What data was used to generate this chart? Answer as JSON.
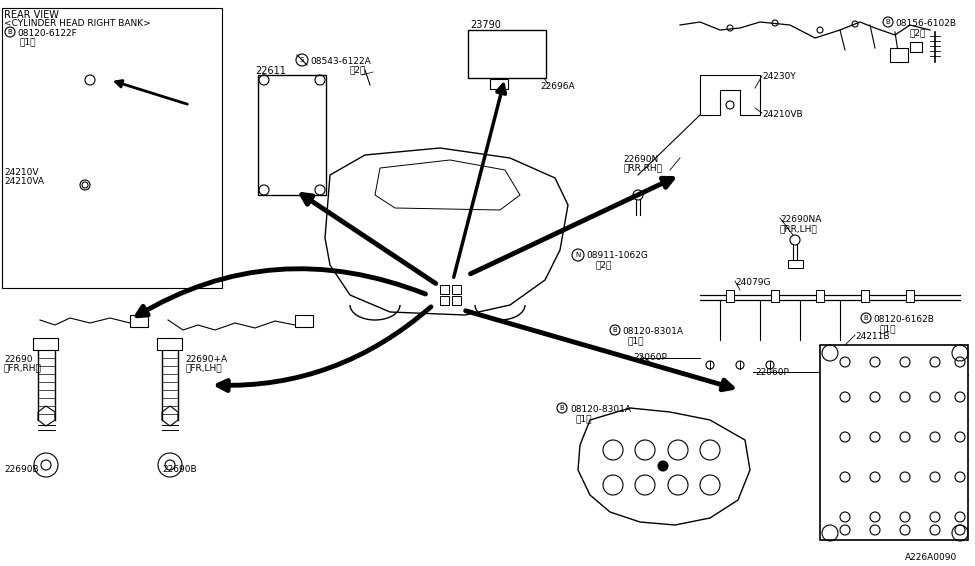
{
  "bg_color": "#ffffff",
  "line_color": "#000000",
  "fig_width": 9.75,
  "fig_height": 5.66,
  "dpi": 100,
  "labels": {
    "rear_view": "REAR VIEW",
    "cylinder_head": "<CYLINDER HEAD RIGHT BANK>",
    "b_08120_6122f": "Ⓑ 08120-6122F",
    "one_1a": "（1）",
    "24210v": "24210V",
    "24210va": "24210VA",
    "22611": "22611",
    "s_08543_6122a": "Ⓢ 08543-6122A",
    "two_2a": "（2）",
    "23790": "23790",
    "22696a": "22696A",
    "n_08911_1062g": "Ⓝ 08911-1062G",
    "two_2b": "（2）",
    "22690n": "22690N",
    "rr_rh": "（RR,RH）",
    "24230y": "24230Y",
    "24210vb": "24210VB",
    "b_08156_6102b": "Ⓑ 08156-6102B",
    "two_2c": "（2）",
    "22690na": "22690NA",
    "rr_lh": "（RR,LH）",
    "24079g": "24079G",
    "b_08120_8301a_1": "Ⓑ 08120-8301A",
    "one_1b": "（1）",
    "b_08120_8301a_2": "Ⓑ 08120-8301A",
    "one_1c": "（1）",
    "22060p_l": "22060P",
    "22060p_r": "22060P",
    "b_08120_6162b": "Ⓑ 08120-6162B",
    "one_1d": "（1）",
    "24211b": "24211B",
    "22690": "22690",
    "fr_rh": "（FR,RH）",
    "22690_a": "22690+A",
    "fr_lh": "（FR,LH）",
    "22690b_l": "22690B",
    "22690b_r": "22690B",
    "fig_num": "A226A0090"
  }
}
